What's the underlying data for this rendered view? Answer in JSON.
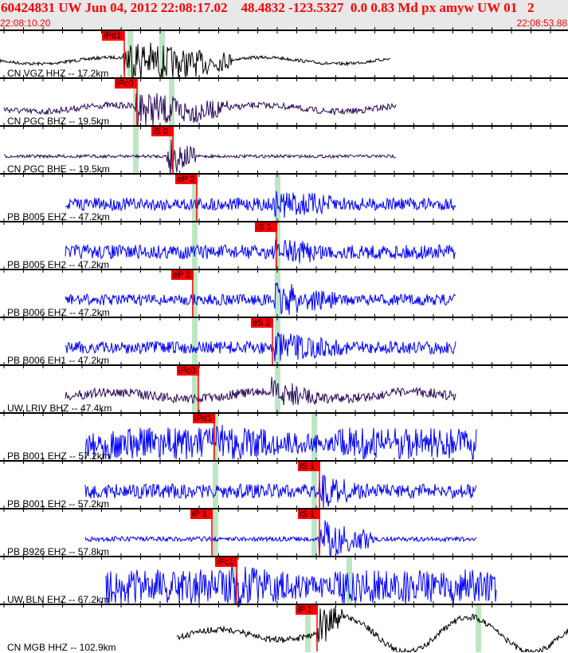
{
  "header": {
    "title": "60424831 UW Jun 04, 2012 22:08:17.02    48.4832 -123.5327  0.0 0.83 Md px amyw UW 01   2",
    "start_time": "22:08:10.20",
    "end_time": "22:08:53.88"
  },
  "traces": [
    {
      "label": "CN VGZ HHZ -- 17.2km",
      "picks": [
        "iPd1"
      ]
    },
    {
      "label": "CN PGC BHZ -- 19.5km",
      "picks": [
        "iPc0"
      ]
    },
    {
      "label": "CN PGC BHE -- 19.5km",
      "picks": [
        "iS 0"
      ]
    },
    {
      "label": "PB B005 EHZ -- 47.2km",
      "picks": [
        "eP 2"
      ]
    },
    {
      "label": "PB B005 EH2 -- 47.2km",
      "picks": [
        "iS 1"
      ]
    },
    {
      "label": "PB B006 EHZ -- 47.2km",
      "picks": [
        "eP 2"
      ]
    },
    {
      "label": "PB B006 EH1 -- 47.2km",
      "picks": [
        "eS 2"
      ]
    },
    {
      "label": "UW LRIV BHZ -- 47.4km",
      "picks": [
        "iPc0"
      ]
    },
    {
      "label": "PB B001 EHZ -- 57.2km",
      "picks": [
        "iPd1"
      ]
    },
    {
      "label": "PB B001 EH2 -- 57.2km",
      "picks": [
        "iS 1"
      ]
    },
    {
      "label": "PB B926 EH2 -- 57.8km",
      "picks": [
        "iP 1",
        "iS 1"
      ]
    },
    {
      "label": "UW BLN EHZ -- 67.2km",
      "picks": [
        "iPc1"
      ]
    },
    {
      "label": "CN MGB HHZ -- 102.9km",
      "picks": [
        "iP 1"
      ]
    }
  ],
  "colors": {
    "pick": "#ff0000",
    "band": "#bfe6c4",
    "blue": "#0000ff",
    "purple": "#2a0a5a",
    "black": "#000000"
  }
}
